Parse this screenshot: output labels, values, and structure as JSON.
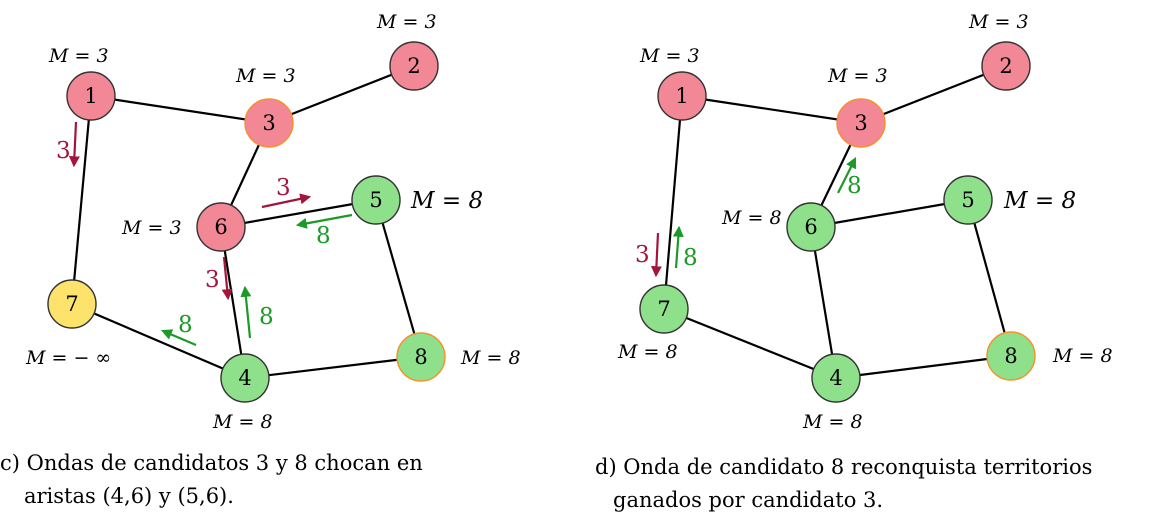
{
  "colors": {
    "red_node": "#f28796",
    "green_node": "#8ee08b",
    "yellow_node": "#fde36b",
    "orange_ring": "#f5912a",
    "wave_red": "#a3153a",
    "wave_green": "#1b9a28"
  },
  "panel_c": {
    "nodes": [
      {
        "id": "1",
        "label": "1",
        "status": "red",
        "m_label": "M = 3"
      },
      {
        "id": "2",
        "label": "2",
        "status": "red",
        "m_label": "M = 3"
      },
      {
        "id": "3",
        "label": "3",
        "status": "red-candidate",
        "m_label": "M = 3"
      },
      {
        "id": "5",
        "label": "5",
        "status": "green",
        "m_label": "M = 8"
      },
      {
        "id": "6",
        "label": "6",
        "status": "red",
        "m_label": "M = 3"
      },
      {
        "id": "7",
        "label": "7",
        "status": "yellow",
        "m_label": "M = − ∞"
      },
      {
        "id": "4",
        "label": "4",
        "status": "green",
        "m_label": "M = 8"
      },
      {
        "id": "8",
        "label": "8",
        "status": "green-candidate",
        "m_label": "M = 8"
      }
    ],
    "edges": [
      [
        "1",
        "3"
      ],
      [
        "3",
        "2"
      ],
      [
        "1",
        "7"
      ],
      [
        "3",
        "6"
      ],
      [
        "6",
        "5"
      ],
      [
        "6",
        "4"
      ],
      [
        "7",
        "4"
      ],
      [
        "4",
        "8"
      ],
      [
        "5",
        "8"
      ]
    ],
    "waves": [
      {
        "candidate": "3",
        "label": "3",
        "color": "red"
      },
      {
        "candidate": "3",
        "label": "3",
        "color": "red"
      },
      {
        "candidate": "8",
        "label": "8",
        "color": "green"
      },
      {
        "candidate": "3",
        "label": "3",
        "color": "red"
      },
      {
        "candidate": "8",
        "label": "8",
        "color": "green"
      },
      {
        "candidate": "8",
        "label": "8",
        "color": "green"
      }
    ],
    "caption_line1": "c) Ondas de candidatos 3 y 8 chocan en",
    "caption_line2": "aristas (4,6) y (5,6)."
  },
  "panel_d": {
    "nodes": [
      {
        "id": "1",
        "label": "1",
        "status": "red",
        "m_label": "M = 3"
      },
      {
        "id": "2",
        "label": "2",
        "status": "red",
        "m_label": "M = 3"
      },
      {
        "id": "3",
        "label": "3",
        "status": "red-candidate",
        "m_label": "M = 3"
      },
      {
        "id": "6",
        "label": "6",
        "status": "green",
        "m_label": "M = 8"
      },
      {
        "id": "5",
        "label": "5",
        "status": "green",
        "m_label": "M = 8"
      },
      {
        "id": "7",
        "label": "7",
        "status": "green",
        "m_label": "M = 8"
      },
      {
        "id": "4",
        "label": "4",
        "status": "green",
        "m_label": "M = 8"
      },
      {
        "id": "8",
        "label": "8",
        "status": "green-candidate",
        "m_label": "M = 8"
      }
    ],
    "edges": [
      [
        "1",
        "3"
      ],
      [
        "3",
        "2"
      ],
      [
        "1",
        "7"
      ],
      [
        "3",
        "6"
      ],
      [
        "6",
        "5"
      ],
      [
        "6",
        "4"
      ],
      [
        "7",
        "4"
      ],
      [
        "4",
        "8"
      ],
      [
        "5",
        "8"
      ]
    ],
    "waves": [
      {
        "candidate": "8",
        "label": "8",
        "color": "green"
      },
      {
        "candidate": "3",
        "label": "3",
        "color": "red"
      },
      {
        "candidate": "8",
        "label": "8",
        "color": "green"
      }
    ],
    "caption_line1": "d) Onda de candidato 8 reconquista territorios",
    "caption_line2": "ganados por candidato 3."
  }
}
